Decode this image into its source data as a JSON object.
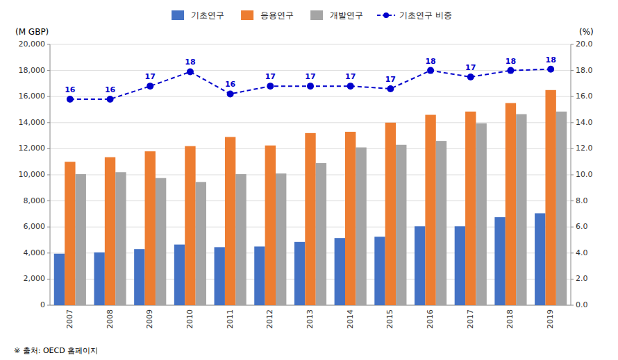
{
  "chart_data": {
    "type": "bar",
    "categories": [
      "2007",
      "2008",
      "2009",
      "2010",
      "2011",
      "2012",
      "2013",
      "2014",
      "2015",
      "2016",
      "2017",
      "2018",
      "2019"
    ],
    "series": [
      {
        "name": "기초연구",
        "color": "#4472C4",
        "values": [
          3950,
          4050,
          4300,
          4650,
          4450,
          4500,
          4850,
          5150,
          5250,
          6050,
          6050,
          6750,
          7050
        ]
      },
      {
        "name": "응용연구",
        "color": "#ED7D31",
        "values": [
          11000,
          11350,
          11800,
          12200,
          12900,
          12250,
          13200,
          13300,
          14000,
          14600,
          14850,
          15500,
          16500
        ]
      },
      {
        "name": "개발연구",
        "color": "#A5A5A5",
        "values": [
          10050,
          10200,
          9750,
          9450,
          10050,
          10100,
          10900,
          12100,
          12300,
          12600,
          13950,
          14650,
          14850
        ]
      },
      {
        "name": "기초연구 비중",
        "color": "#0000CC",
        "type": "line",
        "axis": "y2",
        "line_style": "dashed",
        "marker": "circle",
        "data_labels": true,
        "values": [
          15.8,
          15.8,
          16.8,
          17.9,
          16.2,
          16.8,
          16.8,
          16.8,
          16.6,
          18.0,
          17.5,
          18.0,
          18.1
        ],
        "value_labels": [
          "16",
          "16",
          "17",
          "18",
          "16",
          "17",
          "17",
          "17",
          "17",
          "18",
          "17",
          "18",
          "18"
        ]
      }
    ],
    "y_label": "(M GBP)",
    "y2_label": "(%)",
    "source": "※ 출처: OECD 홈페이지",
    "ylim": [
      0,
      20000
    ],
    "yticks": [
      0,
      {
        "value": 2000,
        "label": "2,000"
      },
      {
        "value": 4000,
        "label": "4,000"
      },
      {
        "value": 6000,
        "label": "6,000"
      },
      {
        "value": 8000,
        "label": "8,000"
      },
      {
        "value": 10000,
        "label": "10,000"
      },
      {
        "value": 12000,
        "label": "12,000"
      },
      {
        "value": 14000,
        "label": "14,000"
      },
      {
        "value": 16000,
        "label": "16,000"
      },
      {
        "value": 18000,
        "label": "18,000"
      },
      {
        "value": 20000,
        "label": "20,000"
      }
    ],
    "y2lim": [
      0,
      20.0
    ],
    "y2ticks": [
      {
        "value": 0.0,
        "label": "0.0"
      },
      {
        "value": 2.0,
        "label": "2.0"
      },
      {
        "value": 4.0,
        "label": "4.0"
      },
      {
        "value": 6.0,
        "label": "6.0"
      },
      {
        "value": 8.0,
        "label": "8.0"
      },
      {
        "value": 10.0,
        "label": "10.0"
      },
      {
        "value": 12.0,
        "label": "12.0"
      },
      {
        "value": 14.0,
        "label": "14.0"
      },
      {
        "value": 16.0,
        "label": "16.0"
      },
      {
        "value": 18.0,
        "label": "18.0"
      },
      {
        "value": 20.0,
        "label": "20.0"
      }
    ],
    "grid": true,
    "legend": "top"
  }
}
